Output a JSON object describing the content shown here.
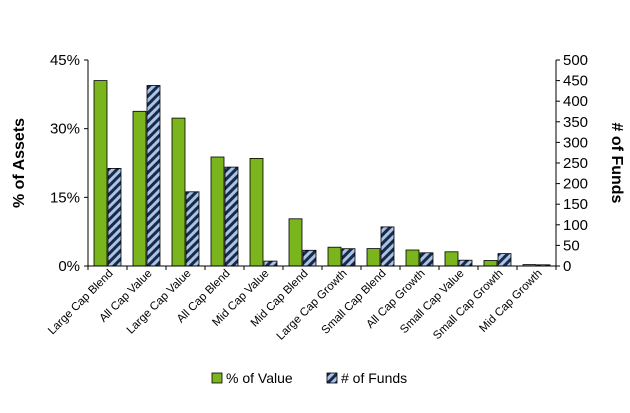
{
  "chart_data": {
    "type": "bar",
    "categories": [
      "Large Cap Blend",
      "All Cap Value",
      "Large Cap Value",
      "All Cap Blend",
      "Mid Cap Value",
      "Mid Cap Blend",
      "Large Cap Growth",
      "Small Cap Blend",
      "All Cap Growth",
      "Small Cap Value",
      "Small Cap Growth",
      "Mid Cap Growth"
    ],
    "series": [
      {
        "name": "% of Value",
        "axis": "left",
        "color": "#7ab51d",
        "values": [
          40.5,
          33.8,
          32.3,
          23.8,
          23.5,
          10.3,
          4.1,
          3.8,
          3.5,
          3.1,
          1.2,
          0.3
        ]
      },
      {
        "name": "# of Funds",
        "axis": "right",
        "color": "#1b2a49",
        "stripe": "#a8c4e6",
        "values": [
          237,
          438,
          180,
          240,
          12,
          38,
          42,
          95,
          32,
          14,
          30,
          3
        ]
      }
    ],
    "y_left": {
      "label": "% of Assets",
      "min": 0,
      "max": 45,
      "ticks": [
        "0%",
        "15%",
        "30%",
        "45%"
      ],
      "tick_values": [
        0,
        15,
        30,
        45
      ]
    },
    "y_right": {
      "label": "# of Funds",
      "min": 0,
      "max": 500,
      "ticks": [
        "0",
        "50",
        "100",
        "150",
        "200",
        "250",
        "300",
        "350",
        "400",
        "450",
        "500"
      ],
      "tick_values": [
        0,
        50,
        100,
        150,
        200,
        250,
        300,
        350,
        400,
        450,
        500
      ]
    },
    "legend_position": "bottom",
    "grid": false
  }
}
